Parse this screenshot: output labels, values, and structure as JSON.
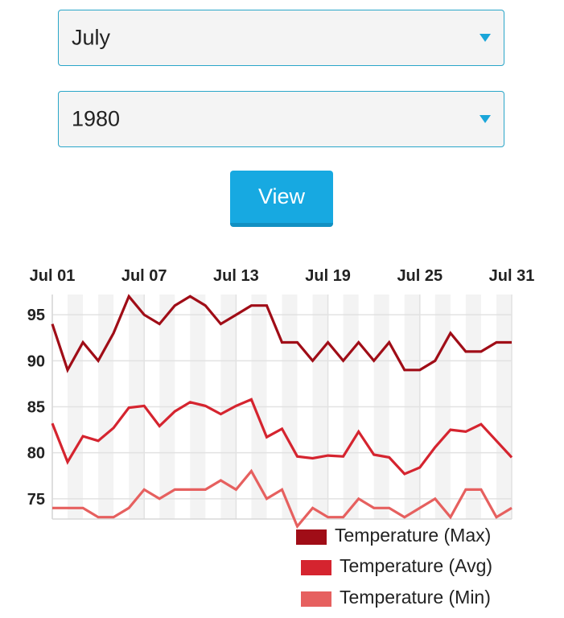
{
  "form": {
    "month": "July",
    "year": "1980",
    "view_label": "View"
  },
  "colors": {
    "accent": "#17a9e1",
    "max": "#a00d17",
    "avg": "#d5242f",
    "min": "#e6605f"
  },
  "chart_data": {
    "type": "line",
    "x": [
      "Jul 01",
      "Jul 02",
      "Jul 03",
      "Jul 04",
      "Jul 05",
      "Jul 06",
      "Jul 07",
      "Jul 08",
      "Jul 09",
      "Jul 10",
      "Jul 11",
      "Jul 12",
      "Jul 13",
      "Jul 14",
      "Jul 15",
      "Jul 16",
      "Jul 17",
      "Jul 18",
      "Jul 19",
      "Jul 20",
      "Jul 21",
      "Jul 22",
      "Jul 23",
      "Jul 24",
      "Jul 25",
      "Jul 26",
      "Jul 27",
      "Jul 28",
      "Jul 29",
      "Jul 30",
      "Jul 31"
    ],
    "x_tick_labels": [
      "Jul 01",
      "Jul 07",
      "Jul 13",
      "Jul 19",
      "Jul 25",
      "Jul 31"
    ],
    "x_tick_positions": [
      0,
      6,
      12,
      18,
      24,
      30
    ],
    "y_ticks": [
      75,
      80,
      85,
      90,
      95
    ],
    "ylim": [
      72.8,
      97.2
    ],
    "grid": true,
    "legend_position": "bottom-right",
    "series": [
      {
        "name": "Temperature (Max)",
        "color": "#a00d17",
        "values": [
          94,
          89,
          92,
          90,
          93,
          97,
          95,
          94,
          96,
          97,
          96,
          94,
          95,
          96,
          96,
          92,
          92,
          90,
          92,
          90,
          92,
          90,
          92,
          89,
          89,
          90,
          93,
          91,
          91,
          92,
          92
        ]
      },
      {
        "name": "Temperature (Avg)",
        "color": "#d5242f",
        "values": [
          83.2,
          79,
          81.8,
          81.3,
          82.7,
          84.9,
          85.1,
          82.9,
          84.5,
          85.5,
          85.1,
          84.2,
          85.1,
          85.8,
          81.7,
          82.6,
          79.6,
          79.4,
          79.7,
          79.6,
          82.3,
          79.8,
          79.5,
          77.7,
          78.4,
          80.6,
          82.5,
          82.3,
          83.1,
          81.3,
          79.5
        ]
      },
      {
        "name": "Temperature (Min)",
        "color": "#e6605f",
        "values": [
          74,
          74,
          74,
          73,
          73,
          74,
          76,
          75,
          76,
          76,
          76,
          77,
          76,
          78,
          75,
          76,
          72,
          74,
          73,
          73,
          75,
          74,
          74,
          73,
          74,
          75,
          73,
          76,
          76,
          73,
          74
        ]
      }
    ]
  }
}
